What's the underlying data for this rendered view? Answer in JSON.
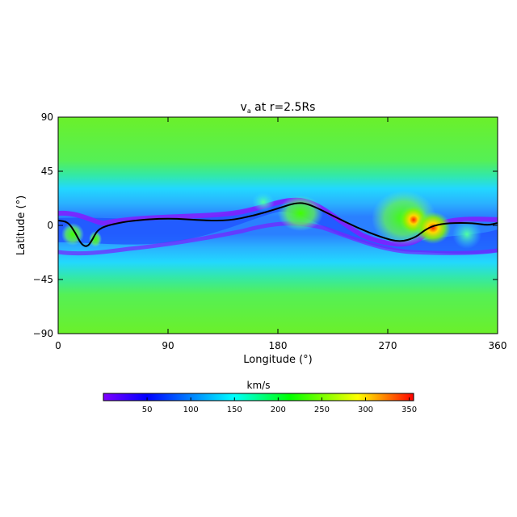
{
  "chart_data": {
    "type": "heatmap",
    "title": "v at r=2.5Rs",
    "title_parts": {
      "main": "v",
      "subscript": "a",
      "rest": " at r=2.5Rs"
    },
    "xlabel": "Longitude (°)",
    "ylabel": "Latitude (°)",
    "xlim": [
      0,
      360
    ],
    "ylim": [
      -90,
      90
    ],
    "xticks": [
      0,
      90,
      180,
      270,
      360
    ],
    "yticks": [
      90,
      45,
      0,
      -45,
      -90
    ],
    "ytick_labels": [
      "90",
      "45",
      "0",
      "−45",
      "−90"
    ],
    "colorbar": {
      "label": "km/s",
      "range": [
        0,
        355
      ],
      "ticks": [
        50,
        100,
        150,
        200,
        250,
        300,
        350
      ],
      "colors": [
        "#8000ff",
        "#0000ff",
        "#00ffff",
        "#00ff00",
        "#ffff00",
        "#ff0000"
      ]
    },
    "grid": false,
    "neutral_line": [
      [
        0,
        4
      ],
      [
        8,
        3
      ],
      [
        14,
        -6
      ],
      [
        19,
        -16
      ],
      [
        24,
        -18
      ],
      [
        28,
        -12
      ],
      [
        32,
        -4
      ],
      [
        40,
        0
      ],
      [
        60,
        4
      ],
      [
        90,
        6
      ],
      [
        120,
        4
      ],
      [
        140,
        4
      ],
      [
        160,
        8
      ],
      [
        180,
        14
      ],
      [
        195,
        19
      ],
      [
        205,
        18
      ],
      [
        225,
        8
      ],
      [
        245,
        -2
      ],
      [
        265,
        -10
      ],
      [
        280,
        -14
      ],
      [
        293,
        -10
      ],
      [
        300,
        -4
      ],
      [
        308,
        0
      ],
      [
        320,
        2
      ],
      [
        340,
        2
      ],
      [
        352,
        0
      ],
      [
        360,
        2
      ]
    ]
  }
}
